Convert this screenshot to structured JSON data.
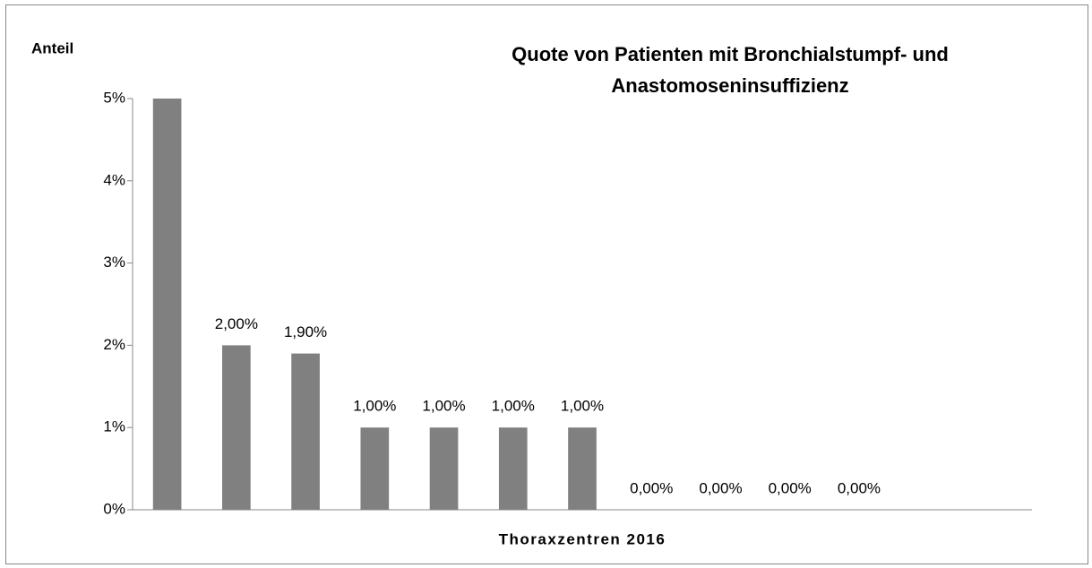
{
  "chart_data": {
    "type": "bar",
    "title": [
      "Quote von Patienten mit Bronchialstumpf- und",
      "Anastomoseninsuffizienz"
    ],
    "y_label": "Anteil",
    "x_label": "Thoraxzentren 2016",
    "categories": [
      null,
      null,
      null,
      null,
      null,
      null,
      null,
      null,
      null,
      null,
      null,
      null,
      null
    ],
    "values": [
      5,
      2,
      1.9,
      1,
      1,
      1,
      1,
      0,
      0,
      0,
      0,
      null,
      null
    ],
    "value_labels": [
      null,
      "2,00%",
      "1,90%",
      "1,00%",
      "1,00%",
      "1,00%",
      "1,00%",
      "0,00%",
      "0,00%",
      "0,00%",
      "0,00%",
      null,
      null
    ],
    "color": "#808080",
    "ylim": [
      0,
      5
    ],
    "yticks": [
      {
        "value": 0,
        "label": "0%"
      },
      {
        "value": 1,
        "label": "1%"
      },
      {
        "value": 2,
        "label": "2%"
      },
      {
        "value": 3,
        "label": "3%"
      },
      {
        "value": 4,
        "label": "4%"
      },
      {
        "value": 5,
        "label": "5%"
      }
    ],
    "grid": false
  }
}
